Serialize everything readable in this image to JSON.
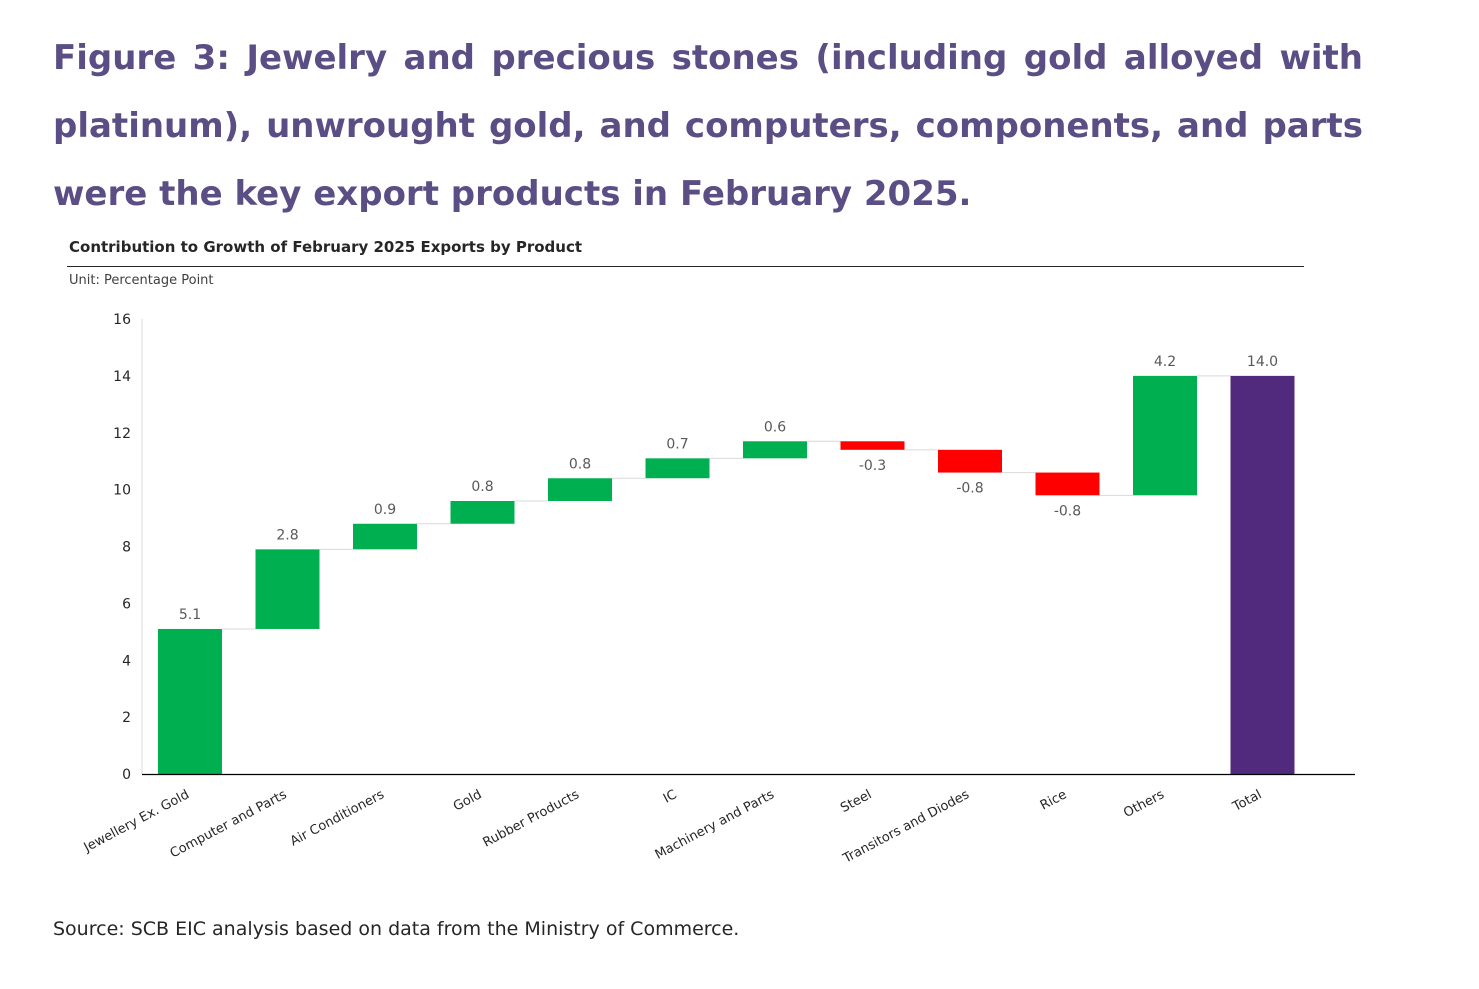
{
  "figure_title": "Figure 3: Jewelry and precious stones (including gold alloyed with platinum), unwrought gold, and computers, components, and parts were the key export products in February 2025.",
  "source": "Source: SCB EIC analysis based on data from the Ministry of Commerce.",
  "colors": {
    "title": "#5b4e85",
    "increase": "#00b050",
    "decrease": "#ff0000",
    "total": "#512a7e"
  },
  "chart_data": {
    "type": "bar",
    "subtype": "waterfall",
    "title": "Contribution to Growth of February 2025 Exports by Product",
    "subtitle": "Unit: Percentage Point",
    "xlabel": "",
    "ylabel": "",
    "ylim": [
      0,
      16
    ],
    "yticks": [
      "0",
      "2",
      "4",
      "6",
      "8",
      "10",
      "12",
      "14",
      "16"
    ],
    "grid": false,
    "legend": "none",
    "categories": [
      "Jewellery Ex. Gold",
      "Computer and Parts",
      "Air Conditioners",
      "Gold",
      "Rubber Products",
      "IC",
      "Machinery and Parts",
      "Steel",
      "Transitors and Diodes",
      "Rice",
      "Others",
      "Total"
    ],
    "values": [
      5.1,
      2.8,
      0.9,
      0.8,
      0.8,
      0.7,
      0.6,
      -0.3,
      -0.8,
      -0.8,
      4.2,
      14.0
    ],
    "value_labels": [
      "5.1",
      "2.8",
      "0.9",
      "0.8",
      "0.8",
      "0.7",
      "0.6",
      "-0.3",
      "-0.8",
      "-0.8",
      "4.2",
      "14.0"
    ],
    "bar_kinds": [
      "increase",
      "increase",
      "increase",
      "increase",
      "increase",
      "increase",
      "increase",
      "decrease",
      "decrease",
      "decrease",
      "increase",
      "total"
    ]
  }
}
